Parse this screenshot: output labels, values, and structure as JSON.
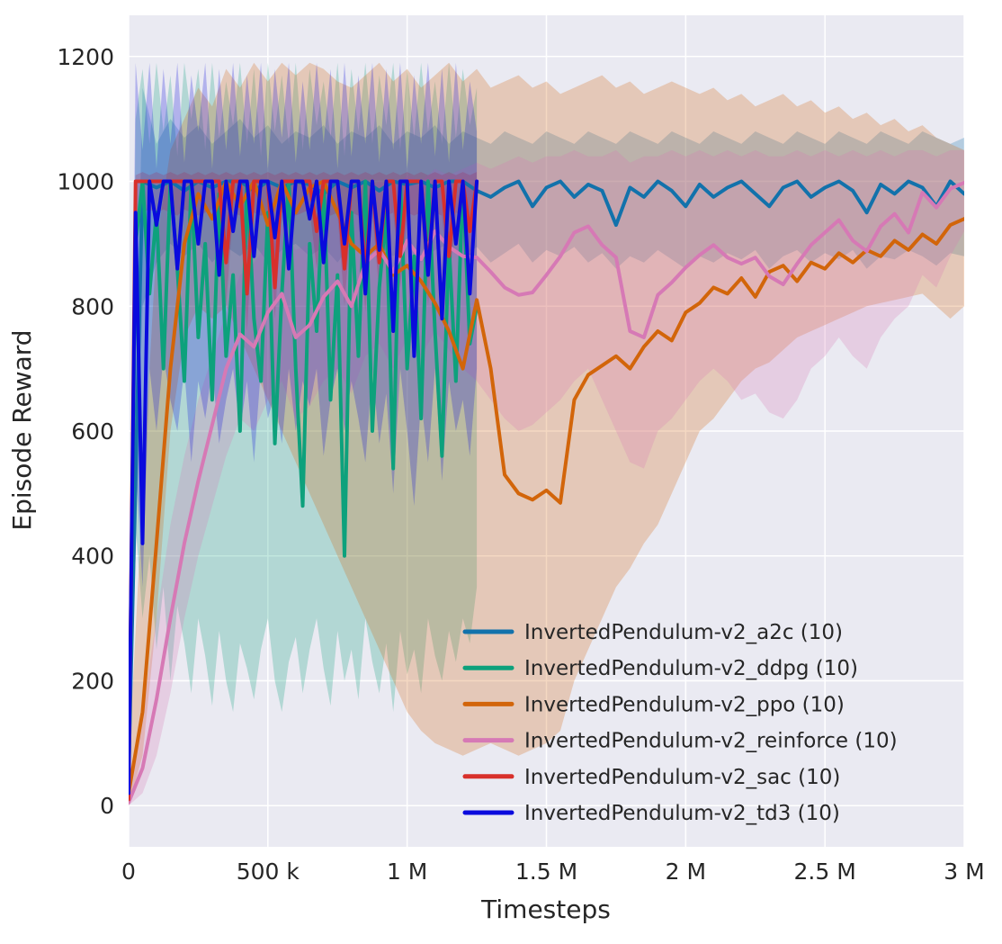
{
  "figure": {
    "background": "#ffffff",
    "plot_background": "#eaeaf2",
    "grid_color": "#ffffff",
    "text_color": "#262626"
  },
  "chart_data": {
    "type": "line",
    "title": "",
    "xlabel": "Timesteps",
    "ylabel": "Episode Reward",
    "xlim": [
      0,
      3000000
    ],
    "ylim": [
      -66,
      1266
    ],
    "grid": true,
    "legend_position": "lower right",
    "band_opacity": 0.25,
    "x_ticks": [
      {
        "value": 0,
        "label": "0"
      },
      {
        "value": 500000,
        "label": "500 k"
      },
      {
        "value": 1000000,
        "label": "1 M"
      },
      {
        "value": 1500000,
        "label": "1.5 M"
      },
      {
        "value": 2000000,
        "label": "2 M"
      },
      {
        "value": 2500000,
        "label": "2.5 M"
      },
      {
        "value": 3000000,
        "label": "3 M"
      }
    ],
    "y_ticks": [
      {
        "value": 0,
        "label": "0"
      },
      {
        "value": 200,
        "label": "200"
      },
      {
        "value": 400,
        "label": "400"
      },
      {
        "value": 600,
        "label": "600"
      },
      {
        "value": 800,
        "label": "800"
      },
      {
        "value": 1000,
        "label": "1000"
      },
      {
        "value": 1200,
        "label": "1200"
      }
    ],
    "series": [
      {
        "name": "InvertedPendulum-v2_a2c (10)",
        "color": "#1272ab",
        "x_start": 0,
        "x_end": 3000000,
        "y": [
          50,
          1000,
          990,
          1000,
          985,
          1000,
          990,
          1000,
          1000,
          985,
          1000,
          990,
          1000,
          995,
          980,
          1000,
          990,
          1000,
          985,
          1000,
          995,
          1000,
          990,
          1000,
          1000,
          985,
          975,
          990,
          1000,
          960,
          990,
          1000,
          975,
          995,
          985,
          930,
          990,
          975,
          1000,
          985,
          960,
          995,
          975,
          990,
          1000,
          980,
          960,
          990,
          1000,
          975,
          990,
          1000,
          985,
          950,
          995,
          980,
          1000,
          990,
          960,
          1000,
          980
        ],
        "band_lo": [
          0,
          800,
          870,
          900,
          880,
          900,
          870,
          895,
          880,
          900,
          870,
          890,
          900,
          880,
          895,
          870,
          900,
          885,
          895,
          880,
          900,
          870,
          890,
          900,
          880,
          895,
          870,
          885,
          900,
          870,
          890,
          880,
          895,
          870,
          885,
          860,
          880,
          870,
          890,
          875,
          860,
          880,
          870,
          885,
          875,
          890,
          860,
          880,
          890,
          870,
          885,
          875,
          890,
          860,
          880,
          875,
          890,
          880,
          865,
          885,
          880
        ],
        "band_hi": [
          120,
          1150,
          1060,
          1100,
          1070,
          1090,
          1060,
          1080,
          1100,
          1070,
          1090,
          1060,
          1080,
          1070,
          1090,
          1060,
          1080,
          1070,
          1090,
          1060,
          1080,
          1070,
          1090,
          1060,
          1080,
          1070,
          1060,
          1080,
          1070,
          1060,
          1080,
          1070,
          1060,
          1080,
          1070,
          1060,
          1080,
          1070,
          1060,
          1080,
          1070,
          1060,
          1080,
          1070,
          1060,
          1080,
          1070,
          1060,
          1080,
          1070,
          1060,
          1080,
          1070,
          1060,
          1080,
          1070,
          1060,
          1080,
          1070,
          1060,
          1070
        ]
      },
      {
        "name": "InvertedPendulum-v2_ddpg (10)",
        "color": "#0da17c",
        "x_start": 0,
        "x_end": 1250000,
        "y": [
          10,
          900,
          1000,
          820,
          950,
          700,
          1000,
          860,
          680,
          1000,
          750,
          900,
          650,
          980,
          720,
          850,
          600,
          1000,
          780,
          680,
          950,
          580,
          820,
          1000,
          700,
          480,
          900,
          760,
          1000,
          650,
          850,
          400,
          950,
          720,
          1000,
          600,
          830,
          950,
          540,
          1000,
          700,
          880,
          620,
          1000,
          760,
          560,
          900,
          680,
          1000,
          740,
          800
        ],
        "band_lo": [
          0,
          450,
          300,
          400,
          250,
          350,
          200,
          320,
          260,
          180,
          300,
          240,
          160,
          280,
          200,
          150,
          260,
          220,
          170,
          250,
          300,
          200,
          150,
          230,
          270,
          180,
          250,
          300,
          220,
          160,
          280,
          200,
          250,
          170,
          300,
          230,
          180,
          260,
          150,
          280,
          210,
          250,
          180,
          300,
          240,
          200,
          280,
          230,
          300,
          260,
          350
        ],
        "band_hi": [
          60,
          1100,
          1180,
          1060,
          1190,
          1080,
          1170,
          1040,
          1190,
          1100,
          1180,
          1050,
          1190,
          1070,
          1160,
          1090,
          1190,
          1060,
          1180,
          1040,
          1190,
          1080,
          1170,
          1060,
          1190,
          1050,
          1180,
          1090,
          1160,
          1070,
          1190,
          1040,
          1180,
          1080,
          1190,
          1060,
          1170,
          1090,
          1190,
          1050,
          1180,
          1070,
          1190,
          1080,
          1160,
          1060,
          1190,
          1070,
          1180,
          1090,
          1150
        ]
      },
      {
        "name": "InvertedPendulum-v2_ppo (10)",
        "color": "#d2650a",
        "x_start": 0,
        "x_end": 3000000,
        "y": [
          20,
          150,
          420,
          700,
          900,
          980,
          940,
          1000,
          960,
          1000,
          930,
          1000,
          950,
          990,
          1000,
          950,
          900,
          880,
          900,
          850,
          865,
          840,
          805,
          760,
          700,
          810,
          700,
          530,
          500,
          490,
          505,
          485,
          650,
          690,
          705,
          720,
          700,
          735,
          760,
          745,
          790,
          805,
          830,
          820,
          845,
          815,
          855,
          865,
          840,
          870,
          860,
          885,
          870,
          890,
          880,
          905,
          890,
          915,
          900,
          930,
          940
        ],
        "band_lo": [
          0,
          80,
          300,
          600,
          750,
          800,
          780,
          800,
          750,
          700,
          650,
          600,
          550,
          500,
          450,
          400,
          350,
          300,
          250,
          200,
          150,
          120,
          100,
          90,
          80,
          90,
          100,
          90,
          80,
          90,
          100,
          120,
          200,
          250,
          300,
          350,
          380,
          420,
          450,
          500,
          550,
          600,
          620,
          650,
          680,
          700,
          710,
          730,
          750,
          760,
          770,
          780,
          790,
          800,
          805,
          810,
          815,
          820,
          800,
          780,
          800
        ],
        "band_hi": [
          60,
          500,
          900,
          1050,
          1100,
          1150,
          1120,
          1180,
          1150,
          1190,
          1160,
          1190,
          1170,
          1190,
          1180,
          1160,
          1150,
          1170,
          1190,
          1160,
          1180,
          1150,
          1170,
          1190,
          1160,
          1180,
          1150,
          1160,
          1170,
          1150,
          1160,
          1140,
          1150,
          1160,
          1170,
          1150,
          1160,
          1140,
          1150,
          1160,
          1150,
          1140,
          1150,
          1130,
          1140,
          1120,
          1130,
          1140,
          1120,
          1130,
          1110,
          1120,
          1100,
          1110,
          1090,
          1100,
          1080,
          1090,
          1070,
          1060,
          1050
        ]
      },
      {
        "name": "InvertedPendulum-v2_reinforce (10)",
        "color": "#d679b5",
        "x_start": 0,
        "x_end": 3000000,
        "y": [
          5,
          60,
          170,
          300,
          420,
          520,
          610,
          700,
          755,
          735,
          790,
          820,
          750,
          770,
          815,
          840,
          800,
          870,
          890,
          855,
          905,
          875,
          920,
          895,
          880,
          878,
          855,
          830,
          818,
          822,
          850,
          880,
          918,
          928,
          898,
          878,
          760,
          750,
          818,
          838,
          862,
          882,
          898,
          878,
          868,
          878,
          848,
          835,
          868,
          898,
          918,
          938,
          905,
          888,
          928,
          948,
          918,
          982,
          958,
          988,
          998
        ],
        "band_lo": [
          0,
          20,
          80,
          180,
          300,
          400,
          480,
          560,
          620,
          600,
          650,
          680,
          620,
          640,
          680,
          700,
          660,
          720,
          740,
          700,
          750,
          720,
          760,
          730,
          700,
          680,
          650,
          620,
          600,
          610,
          630,
          650,
          680,
          700,
          650,
          600,
          550,
          540,
          600,
          620,
          650,
          680,
          700,
          680,
          650,
          660,
          630,
          620,
          650,
          700,
          720,
          750,
          720,
          700,
          750,
          780,
          800,
          850,
          830,
          880,
          920
        ],
        "band_hi": [
          30,
          150,
          300,
          450,
          560,
          650,
          720,
          790,
          850,
          870,
          900,
          930,
          890,
          900,
          930,
          950,
          930,
          980,
          1000,
          990,
          1010,
          1000,
          1020,
          1010,
          1020,
          1030,
          1020,
          1030,
          1040,
          1030,
          1040,
          1040,
          1050,
          1040,
          1040,
          1050,
          1030,
          1040,
          1040,
          1050,
          1040,
          1050,
          1040,
          1050,
          1040,
          1050,
          1040,
          1040,
          1050,
          1040,
          1050,
          1040,
          1050,
          1040,
          1050,
          1040,
          1050,
          1050,
          1040,
          1050,
          1050
        ]
      },
      {
        "name": "InvertedPendulum-v2_sac (10)",
        "color": "#d8302b",
        "x_start": 0,
        "x_end": 1250000,
        "y": [
          10,
          1000,
          1000,
          1000,
          1000,
          1000,
          1000,
          1000,
          1000,
          1000,
          1000,
          1000,
          1000,
          1000,
          870,
          1000,
          1000,
          820,
          1000,
          1000,
          1000,
          830,
          1000,
          1000,
          1000,
          1000,
          1000,
          920,
          1000,
          1000,
          1000,
          860,
          1000,
          1000,
          850,
          1000,
          870,
          1000,
          1000,
          880,
          1000,
          1000,
          1000,
          860,
          1000,
          1000,
          880,
          1000,
          1000,
          920,
          1000
        ],
        "band_lo": [
          0,
          930,
          950,
          955,
          950,
          955,
          950,
          945,
          955,
          950,
          945,
          950,
          955,
          945,
          800,
          950,
          945,
          760,
          950,
          945,
          950,
          780,
          950,
          955,
          945,
          950,
          955,
          860,
          950,
          945,
          950,
          800,
          950,
          945,
          790,
          950,
          820,
          945,
          950,
          830,
          950,
          945,
          950,
          800,
          950,
          945,
          830,
          950,
          945,
          870,
          950
        ],
        "band_hi": [
          30,
          1010,
          1015,
          1010,
          1015,
          1010,
          1015,
          1010,
          1015,
          1010,
          1015,
          1010,
          1015,
          1010,
          1015,
          1010,
          1015,
          1010,
          1015,
          1010,
          1015,
          1010,
          1015,
          1010,
          1015,
          1010,
          1015,
          1010,
          1015,
          1010,
          1015,
          1010,
          1015,
          1010,
          1015,
          1010,
          1015,
          1010,
          1015,
          1010,
          1015,
          1010,
          1015,
          1010,
          1015,
          1010,
          1015,
          1010,
          1015,
          1010,
          1015
        ]
      },
      {
        "name": "InvertedPendulum-v2_td3 (10)",
        "color": "#0a0add",
        "x_start": 0,
        "x_end": 1250000,
        "y": [
          20,
          950,
          420,
          1000,
          930,
          1000,
          1000,
          860,
          1000,
          1000,
          900,
          1000,
          1000,
          850,
          1000,
          920,
          1000,
          1000,
          880,
          1000,
          1000,
          910,
          1000,
          860,
          1000,
          1000,
          940,
          1000,
          870,
          1000,
          1000,
          900,
          1000,
          1000,
          820,
          1000,
          890,
          1000,
          760,
          1000,
          1000,
          720,
          1000,
          850,
          1000,
          780,
          1000,
          900,
          1000,
          820,
          1000
        ],
        "band_lo": [
          0,
          550,
          350,
          700,
          600,
          720,
          650,
          600,
          700,
          550,
          680,
          620,
          700,
          580,
          650,
          700,
          600,
          680,
          550,
          700,
          620,
          660,
          580,
          700,
          600,
          680,
          640,
          700,
          560,
          650,
          700,
          600,
          680,
          620,
          550,
          700,
          580,
          660,
          500,
          700,
          600,
          480,
          650,
          550,
          700,
          520,
          680,
          600,
          650,
          560,
          700
        ],
        "band_hi": [
          60,
          1190,
          1050,
          1190,
          1020,
          1180,
          1060,
          1190,
          1030,
          1170,
          1080,
          1190,
          1020,
          1180,
          1050,
          1190,
          1040,
          1170,
          1060,
          1190,
          1020,
          1180,
          1070,
          1190,
          1030,
          1160,
          1050,
          1190,
          1060,
          1180,
          1020,
          1190,
          1040,
          1170,
          1060,
          1190,
          1030,
          1180,
          1050,
          1190,
          1020,
          1170,
          1060,
          1190,
          1040,
          1180,
          1030,
          1190,
          1050,
          1160,
          1080
        ]
      }
    ]
  }
}
